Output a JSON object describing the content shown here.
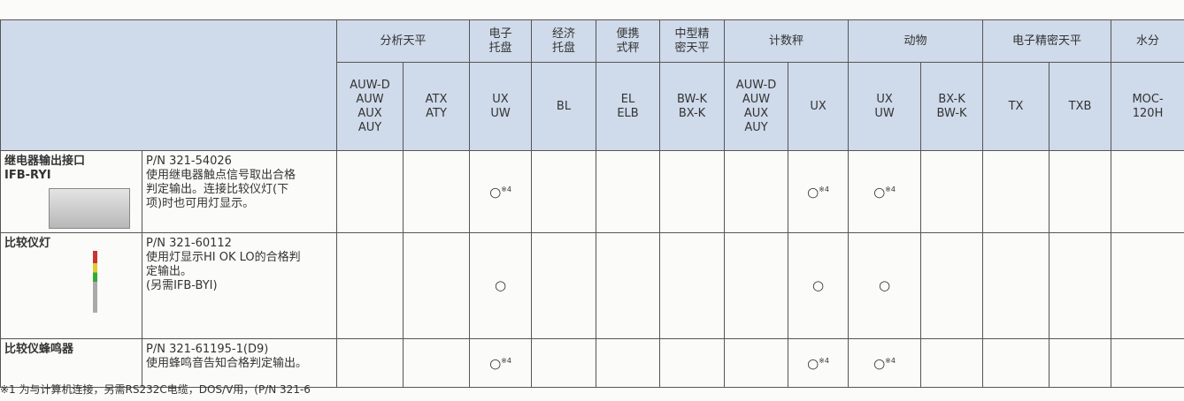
{
  "header": {
    "groups": [
      {
        "label": [
          "分析天平"
        ],
        "columns": [
          [
            "AUW-D",
            "AUW",
            "AUX",
            "AUY"
          ],
          [
            "ATX",
            "ATY"
          ]
        ]
      },
      {
        "label": [
          "电子",
          "托盘"
        ],
        "columns": [
          [
            "UX",
            "UW"
          ]
        ]
      },
      {
        "label": [
          "经济",
          "托盘"
        ],
        "columns": [
          [
            "BL"
          ]
        ]
      },
      {
        "label": [
          "便携",
          "式秤"
        ],
        "columns": [
          [
            "EL",
            "ELB"
          ]
        ]
      },
      {
        "label": [
          "中型精",
          "密天平"
        ],
        "columns": [
          [
            "BW-K",
            "BX-K"
          ]
        ]
      },
      {
        "label": [
          "计数秤"
        ],
        "columns": [
          [
            "AUW-D",
            "AUW",
            "AUX",
            "AUY"
          ],
          [
            "UX"
          ]
        ]
      },
      {
        "label": [
          "动物"
        ],
        "columns": [
          [
            "UX",
            "UW"
          ],
          [
            "BX-K",
            "BW-K"
          ]
        ]
      },
      {
        "label": [
          "电子精密天平"
        ],
        "columns": [
          [
            "TX"
          ],
          [
            "TXB"
          ]
        ]
      },
      {
        "label": [
          "水分"
        ],
        "columns": [
          [
            "MOC-",
            "120H"
          ]
        ]
      }
    ]
  },
  "table": {
    "rows": [
      {
        "name": [
          "继电器输出接口",
          "IFB-RYI"
        ],
        "pn": "P/N 321-54026",
        "description": [
          "使用继电器触点信号取出合格",
          "判定输出。连接比较仪灯(下",
          "项)时也可用灯显示。"
        ],
        "cells": [
          null,
          null,
          {
            "symbol": "○",
            "note": "※4"
          },
          null,
          null,
          null,
          null,
          {
            "symbol": "○",
            "note": "※4"
          },
          {
            "symbol": "○",
            "note": "※4"
          },
          null,
          null,
          null,
          null
        ]
      },
      {
        "name": [
          "比较仪灯"
        ],
        "pn": "P/N 321-60112",
        "description": [
          "使用灯显示HI OK LO的合格判",
          "定输出。",
          "(另需IFB-BYI)"
        ],
        "cells": [
          null,
          null,
          {
            "symbol": "○"
          },
          null,
          null,
          null,
          null,
          {
            "symbol": "○"
          },
          {
            "symbol": "○"
          },
          null,
          null,
          null,
          null
        ]
      },
      {
        "name": [
          "比较仪蜂鸣器"
        ],
        "pn": "P/N 321-61195-1(D9)",
        "description": [
          "使用蜂鸣音告知合格判定输出。"
        ],
        "cells": [
          null,
          null,
          {
            "symbol": "○",
            "note": "※4"
          },
          null,
          null,
          null,
          null,
          {
            "symbol": "○",
            "note": "※4"
          },
          {
            "symbol": "○",
            "note": "※4"
          },
          null,
          null,
          null,
          null
        ]
      }
    ]
  },
  "footnote": "※1 为与计算机连接，另需RS232C电缆，DOS/V用，(P/N 321-6"
}
